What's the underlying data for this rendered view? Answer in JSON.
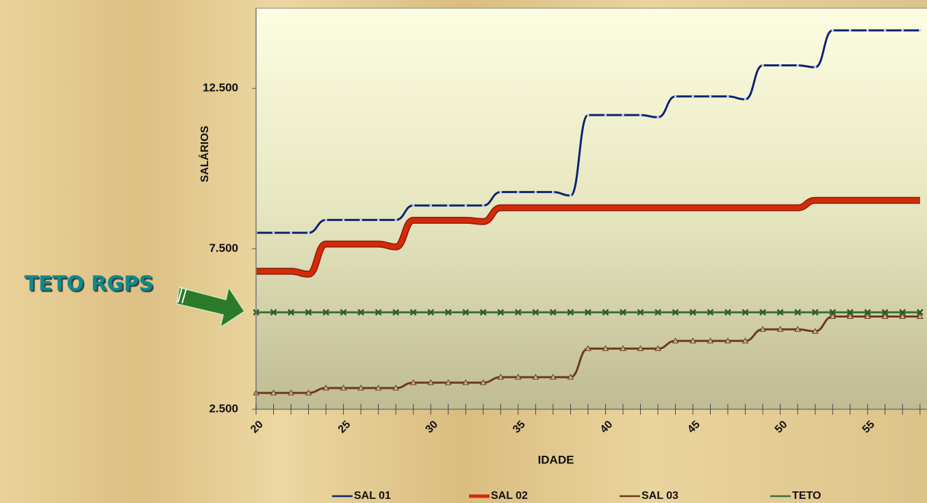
{
  "chart_data": {
    "type": "line",
    "annotation": "TETO RGPS",
    "x_label": "IDADE",
    "y_label": "SALÁRIOS",
    "x": [
      20,
      21,
      22,
      23,
      24,
      25,
      26,
      27,
      28,
      29,
      30,
      31,
      32,
      33,
      34,
      35,
      36,
      37,
      38,
      39,
      40,
      41,
      42,
      43,
      44,
      45,
      46,
      47,
      48,
      49,
      50,
      51,
      52,
      53,
      54,
      55,
      56,
      57,
      58
    ],
    "xlim": [
      20,
      58.4
    ],
    "xticks": [
      20,
      25,
      30,
      35,
      40,
      45,
      50,
      55
    ],
    "ylim": [
      2500,
      15000
    ],
    "yticks": [
      {
        "value": 2500,
        "label": "2.500"
      },
      {
        "value": 7500,
        "label": "7.500"
      },
      {
        "value": 12500,
        "label": "12.500"
      }
    ],
    "series": [
      {
        "name": "SAL 01",
        "color": "#0c2274",
        "values": [
          8000,
          8000,
          8000,
          8000,
          8400,
          8400,
          8400,
          8400,
          8400,
          8850,
          8850,
          8850,
          8850,
          8850,
          9270,
          9270,
          9270,
          9270,
          9160,
          11670,
          11670,
          11670,
          11670,
          11600,
          12250,
          12250,
          12250,
          12250,
          12160,
          13220,
          13220,
          13220,
          13160,
          14310,
          14310,
          14310,
          14310,
          14310,
          14310
        ]
      },
      {
        "name": "SAL 02",
        "color": "#d42a0a",
        "values": [
          6800,
          6800,
          6800,
          6710,
          7650,
          7650,
          7650,
          7650,
          7560,
          8390,
          8390,
          8390,
          8390,
          8350,
          8780,
          8780,
          8780,
          8780,
          8780,
          8780,
          8780,
          8780,
          8780,
          8780,
          8780,
          8780,
          8780,
          8780,
          8780,
          8780,
          8780,
          8780,
          9010,
          9010,
          9010,
          9010,
          9010,
          9010,
          9010
        ]
      },
      {
        "name": "SAL 03",
        "color": "#6b3a1a",
        "values": [
          3010,
          3010,
          3010,
          3010,
          3160,
          3160,
          3160,
          3160,
          3160,
          3330,
          3330,
          3330,
          3330,
          3330,
          3500,
          3500,
          3500,
          3500,
          3500,
          4390,
          4390,
          4390,
          4390,
          4390,
          4630,
          4630,
          4630,
          4630,
          4630,
          4990,
          4990,
          4990,
          4930,
          5390,
          5390,
          5390,
          5390,
          5390,
          5390
        ]
      },
      {
        "name": "TETO",
        "color": "#3d6e3a",
        "values": [
          5520,
          5520,
          5520,
          5520,
          5520,
          5520,
          5520,
          5520,
          5520,
          5520,
          5520,
          5520,
          5520,
          5520,
          5520,
          5520,
          5520,
          5520,
          5520,
          5520,
          5520,
          5520,
          5520,
          5520,
          5520,
          5520,
          5520,
          5520,
          5520,
          5520,
          5520,
          5520,
          5520,
          5520,
          5520,
          5520,
          5520,
          5520,
          5520
        ]
      }
    ]
  }
}
